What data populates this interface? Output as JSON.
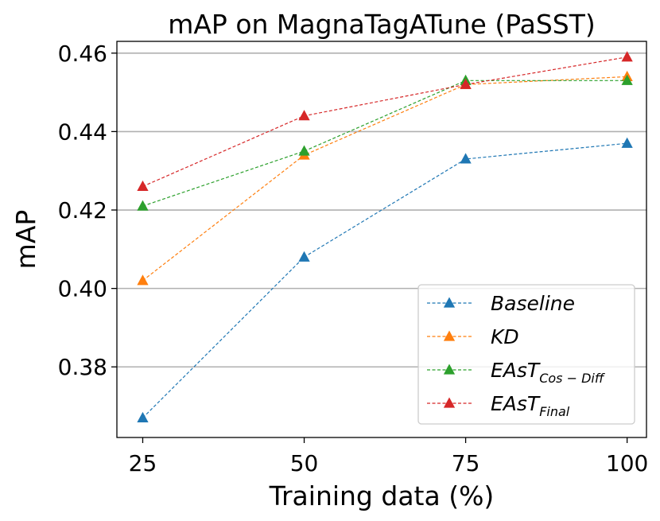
{
  "chart_data": {
    "type": "line",
    "title": "mAP on MagnaTagATune (PaSST)",
    "xlabel": "Training data (%)",
    "ylabel": "mAP",
    "x": [
      25,
      50,
      75,
      100
    ],
    "x_tick_labels": [
      "25",
      "50",
      "75",
      "100"
    ],
    "ylim": [
      0.362,
      0.463
    ],
    "y_ticks": [
      0.38,
      0.4,
      0.42,
      0.44,
      0.46
    ],
    "y_tick_labels": [
      "0.38",
      "0.40",
      "0.42",
      "0.44",
      "0.46"
    ],
    "grid": "horizontal",
    "legend_position": "lower-right",
    "marker": "triangle",
    "series": [
      {
        "name": "Baseline",
        "name_main": "Baseline",
        "name_sub": "",
        "color": "#1f77b4",
        "values": [
          0.367,
          0.408,
          0.433,
          0.437
        ]
      },
      {
        "name": "KD",
        "name_main": "KD",
        "name_sub": "",
        "color": "#ff7f0e",
        "values": [
          0.402,
          0.434,
          0.452,
          0.454
        ]
      },
      {
        "name": "EAsT_Cos-Diff",
        "name_main": "EAsT",
        "name_sub": "Cos − Diff",
        "color": "#2ca02c",
        "values": [
          0.421,
          0.435,
          0.453,
          0.453
        ]
      },
      {
        "name": "EAsT_Final",
        "name_main": "EAsT",
        "name_sub": "Final",
        "color": "#d62728",
        "values": [
          0.426,
          0.444,
          0.452,
          0.459
        ]
      }
    ]
  }
}
